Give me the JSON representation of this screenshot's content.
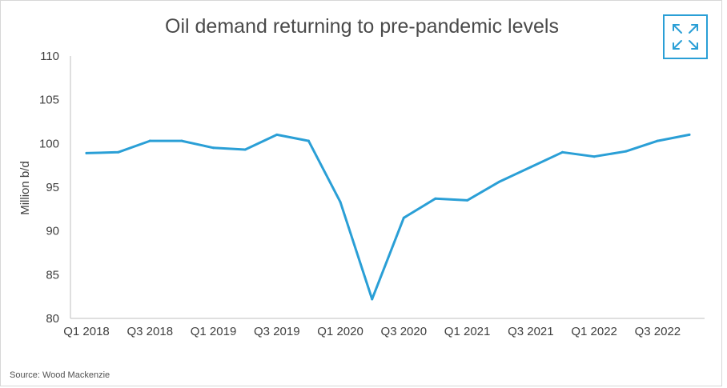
{
  "chart_data": {
    "type": "line",
    "title": "Oil demand returning to pre-pandemic levels",
    "ylabel": "Million b/d",
    "xlabel": "",
    "ylim": [
      80,
      110
    ],
    "yticks": [
      80,
      85,
      90,
      95,
      100,
      105,
      110
    ],
    "x": [
      "Q1 2018",
      "Q2 2018",
      "Q3 2018",
      "Q4 2018",
      "Q1 2019",
      "Q2 2019",
      "Q3 2019",
      "Q4 2019",
      "Q1 2020",
      "Q2 2020",
      "Q3 2020",
      "Q4 2020",
      "Q1 2021",
      "Q2 2021",
      "Q3 2021",
      "Q4 2021",
      "Q1 2022",
      "Q2 2022",
      "Q3 2022",
      "Q4 2022"
    ],
    "x_tick_labels": [
      "Q1 2018",
      "Q3 2018",
      "Q1 2019",
      "Q3 2019",
      "Q1 2020",
      "Q3 2020",
      "Q1 2021",
      "Q3 2021",
      "Q1 2022",
      "Q3 2022"
    ],
    "series": [
      {
        "values": [
          98.9,
          99.0,
          100.3,
          100.3,
          99.5,
          99.3,
          101.0,
          100.3,
          93.3,
          82.2,
          91.5,
          93.7,
          93.5,
          95.6,
          97.3,
          99.0,
          98.5,
          99.1,
          100.3,
          101.0
        ]
      }
    ],
    "line_color": "#2a9fd6",
    "grid": false
  },
  "source_text": "Source: Wood Mackenzie",
  "expand_button": {
    "icon": "expand-arrows-icon",
    "color": "#2a9fd6"
  }
}
